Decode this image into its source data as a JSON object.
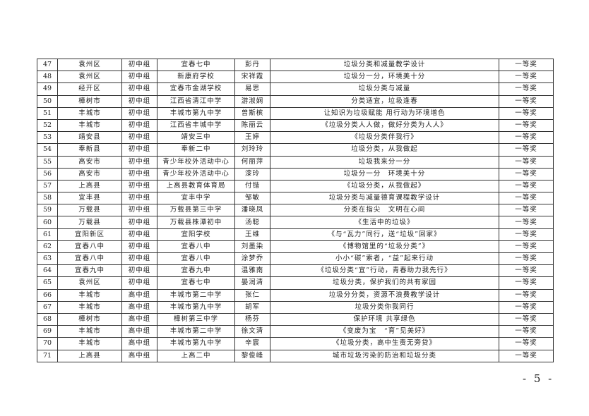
{
  "rows": [
    {
      "no": "47",
      "region": "袁州区",
      "group": "初中组",
      "school": "宜春七中",
      "name": "彭丹",
      "title": "垃圾分类和减量教学设计",
      "award": "一等奖"
    },
    {
      "no": "48",
      "region": "袁州区",
      "group": "初中组",
      "school": "新康府学校",
      "name": "宋祥霞",
      "title": "垃圾分一分，环境美十分",
      "award": "一等奖"
    },
    {
      "no": "49",
      "region": "经开区",
      "group": "初中组",
      "school": "宜春市金湖学校",
      "name": "易思",
      "title": "垃圾分类与减量",
      "award": "一等奖"
    },
    {
      "no": "50",
      "region": "樟树市",
      "group": "初中组",
      "school": "江西省清江中学",
      "name": "游淑娴",
      "title": "分类适宜，垃圾逢春",
      "award": "一等奖"
    },
    {
      "no": "51",
      "region": "丰城市",
      "group": "初中组",
      "school": "丰城市第九中学",
      "name": "曾斯槟",
      "title": "让知识为垃圾赋能 用行动为环境增色",
      "award": "一等奖"
    },
    {
      "no": "52",
      "region": "丰城市",
      "group": "初中组",
      "school": "江西省丰城中学",
      "name": "陈丽云",
      "title": "《垃圾分类人人做，做好分类为人人》",
      "award": "一等奖"
    },
    {
      "no": "53",
      "region": "靖安县",
      "group": "初中组",
      "school": "靖安三中",
      "name": "王婷",
      "title": "《垃圾分类伴我行》",
      "award": "一等奖"
    },
    {
      "no": "54",
      "region": "奉新县",
      "group": "初中组",
      "school": "奉新二中",
      "name": "刘玲玲",
      "title": "垃圾分类，从我做起",
      "award": "一等奖"
    },
    {
      "no": "55",
      "region": "高安市",
      "group": "初中组",
      "school": "青少年校外活动中心",
      "name": "何丽萍",
      "title": "垃圾我来分一分",
      "award": "一等奖"
    },
    {
      "no": "56",
      "region": "高安市",
      "group": "初中组",
      "school": "青少年校外活动中心",
      "name": "漆玲",
      "title": "垃圾分一分　环境美十分",
      "award": "一等奖"
    },
    {
      "no": "57",
      "region": "上高县",
      "group": "初中组",
      "school": "上高县教育体育局",
      "name": "付锴",
      "title": "《垃圾分类，从我做起》",
      "award": "一等奖"
    },
    {
      "no": "58",
      "region": "宜丰县",
      "group": "初中组",
      "school": "宜丰中学",
      "name": "邹敏",
      "title": "垃圾分类与减量德育课程教学设计",
      "award": "一等奖"
    },
    {
      "no": "59",
      "region": "万载县",
      "group": "初中组",
      "school": "万载县第三中学",
      "name": "潘晓凤",
      "title": "分类在指尖　文明在心间",
      "award": "一等奖"
    },
    {
      "no": "60",
      "region": "万载县",
      "group": "初中组",
      "school": "万载县株潭初中",
      "name": "汤聪",
      "title": "《生活中的垃圾》",
      "award": "一等奖"
    },
    {
      "no": "61",
      "region": "宜阳新区",
      "group": "初中组",
      "school": "宜阳学校",
      "name": "王维",
      "title": "《与“瓦力”同行，送“垃圾”回家》",
      "award": "一等奖"
    },
    {
      "no": "62",
      "region": "宜春八中",
      "group": "初中组",
      "school": "宜春八中",
      "name": "刘墨染",
      "title": "《博物馆里的“垃圾分类”》",
      "award": "一等奖"
    },
    {
      "no": "63",
      "region": "宜春八中",
      "group": "初中组",
      "school": "宜春八中",
      "name": "涂梦乔",
      "title": "小小“碳”索者，“益”起来行动",
      "award": "一等奖"
    },
    {
      "no": "64",
      "region": "宜春九中",
      "group": "初中组",
      "school": "宜春九中",
      "name": "温雅南",
      "title": "《垃圾分类“宜”行动，青春助力我先行》",
      "award": "一等奖"
    },
    {
      "no": "65",
      "region": "袁州区",
      "group": "初中组",
      "school": "宜春七中",
      "name": "晏润清",
      "title": "垃圾分类，保护我们的共有家园",
      "award": "一等奖"
    },
    {
      "no": "66",
      "region": "丰城市",
      "group": "高中组",
      "school": "丰城市第二中学",
      "name": "张仁",
      "title": "垃圾分分类，资源不浪费教学设计",
      "award": "一等奖"
    },
    {
      "no": "67",
      "region": "丰城市",
      "group": "高中组",
      "school": "丰城市第九中学",
      "name": "胡军",
      "title": "垃圾分类你我同行",
      "award": "一等奖"
    },
    {
      "no": "68",
      "region": "樟树市",
      "group": "高中组",
      "school": "樟树第三中学",
      "name": "杨芬",
      "title": "保护环境 共享绿色",
      "award": "一等奖"
    },
    {
      "no": "69",
      "region": "丰城市",
      "group": "高中组",
      "school": "丰城市第二中学",
      "name": "徐文清",
      "title": "《变废为宝　“育”见美好》",
      "award": "一等奖"
    },
    {
      "no": "70",
      "region": "丰城市",
      "group": "高中组",
      "school": "丰城市第九中学",
      "name": "辛宸",
      "title": "《垃圾分类，高中生责无旁贷》",
      "award": "一等奖"
    },
    {
      "no": "71",
      "region": "上高县",
      "group": "高中组",
      "school": "上高二中",
      "name": "黎俊峰",
      "title": "城市垃圾污染的防治和垃圾分类",
      "award": "一等奖"
    }
  ],
  "page_number": "- 5 -"
}
